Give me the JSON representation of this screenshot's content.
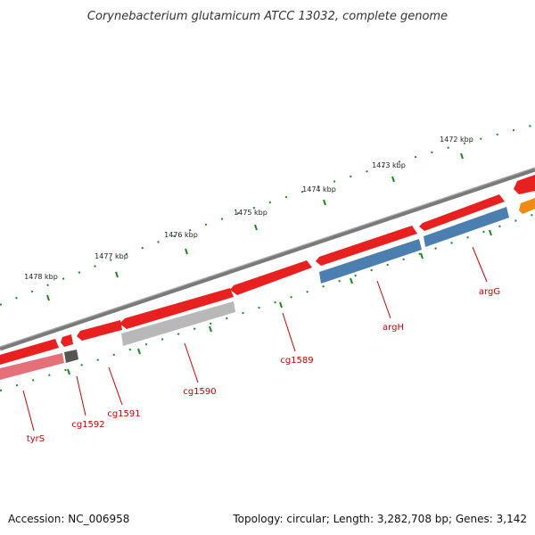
{
  "title": "Corynebacterium glutamicum ATCC 13032, complete genome",
  "accession": "Accession: NC_006958",
  "topology": "Topology: circular; Length: 3,282,708 bp; Genes: 3,142",
  "kbp_labels": [
    "1472 kbp",
    "1473 kbp",
    "1474 kbp",
    "1475 kbp",
    "1476 kbp",
    "1477 kbp",
    "1478 kbp"
  ],
  "genes": [
    {
      "name": "tyrS",
      "strand": "reverse",
      "color": "#e5707a"
    },
    {
      "name": "cg1592",
      "strand": "reverse",
      "color": "#555555"
    },
    {
      "name": "cg1591",
      "strand": "forward",
      "color": "#e82020"
    },
    {
      "name": "cg1590",
      "strand": "reverse",
      "color": "#b8b8b8"
    },
    {
      "name": "cg1589",
      "strand": "forward",
      "color": "#e82020"
    },
    {
      "name": "argH",
      "strand": "reverse",
      "color": "#4a7fb0"
    },
    {
      "name": "argG",
      "strand": "reverse",
      "color": "#4a7fb0"
    }
  ],
  "colors": {
    "backbone": "#7a7a7a",
    "tick": "#1a8a1a",
    "gene_forward": "#e82020",
    "label": "#cc0000"
  }
}
